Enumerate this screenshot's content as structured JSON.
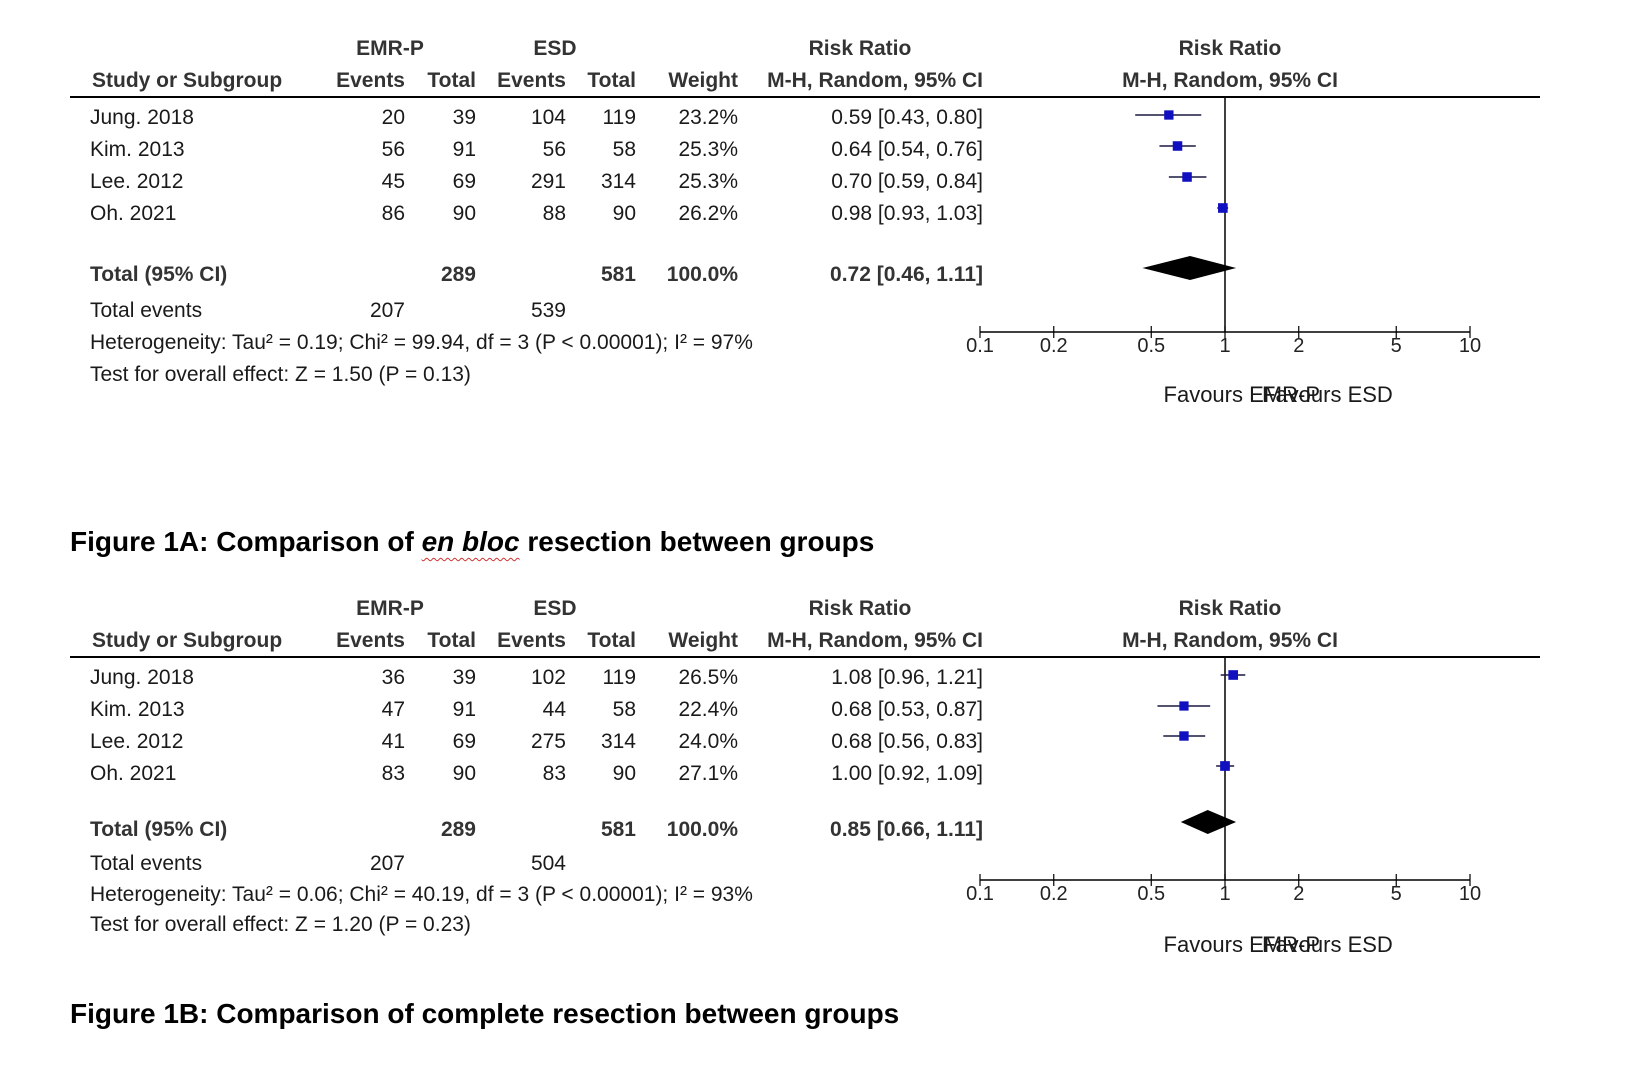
{
  "figures": [
    {
      "headers": {
        "study": "Study or Subgroup",
        "group1": "EMR-P",
        "group2": "ESD",
        "events": "Events",
        "total": "Total",
        "weight": "Weight",
        "rr": "Risk Ratio",
        "rr_method": "M-H, Random, 95% CI",
        "plot_title": "Risk Ratio",
        "plot_method": "M-H, Random, 95% CI"
      },
      "rows": [
        {
          "study": "Jung. 2018",
          "e1": "20",
          "t1": "39",
          "e2": "104",
          "t2": "119",
          "weight": "23.2%",
          "ci": "0.59 [0.43, 0.80]"
        },
        {
          "study": "Kim. 2013",
          "e1": "56",
          "t1": "91",
          "e2": "56",
          "t2": "58",
          "weight": "25.3%",
          "ci": "0.64 [0.54, 0.76]"
        },
        {
          "study": "Lee. 2012",
          "e1": "45",
          "t1": "69",
          "e2": "291",
          "t2": "314",
          "weight": "25.3%",
          "ci": "0.70 [0.59, 0.84]"
        },
        {
          "study": "Oh. 2021",
          "e1": "86",
          "t1": "90",
          "e2": "88",
          "t2": "90",
          "weight": "26.2%",
          "ci": "0.98 [0.93, 1.03]"
        }
      ],
      "total": {
        "label": "Total (95% CI)",
        "t1": "289",
        "t2": "581",
        "weight": "100.0%",
        "ci": "0.72 [0.46, 1.11]"
      },
      "total_events": {
        "label": "Total events",
        "e1": "207",
        "e2": "539"
      },
      "heterogeneity": "Heterogeneity: Tau² = 0.19; Chi² = 99.94, df = 3 (P < 0.00001); I² = 97%",
      "overall_effect": "Test for overall effect: Z = 1.50 (P = 0.13)",
      "favours_left": "Favours EMR-P",
      "favours_right": "Favours ESD",
      "caption_pre": "Figure 1A: Comparison of ",
      "caption_em": "en bloc",
      "caption_post": " resection between groups"
    },
    {
      "headers": {
        "study": "Study or Subgroup",
        "group1": "EMR-P",
        "group2": "ESD",
        "events": "Events",
        "total": "Total",
        "weight": "Weight",
        "rr": "Risk Ratio",
        "rr_method": "M-H, Random, 95% CI",
        "plot_title": "Risk Ratio",
        "plot_method": "M-H, Random, 95% CI"
      },
      "rows": [
        {
          "study": "Jung. 2018",
          "e1": "36",
          "t1": "39",
          "e2": "102",
          "t2": "119",
          "weight": "26.5%",
          "ci": "1.08 [0.96, 1.21]"
        },
        {
          "study": "Kim. 2013",
          "e1": "47",
          "t1": "91",
          "e2": "44",
          "t2": "58",
          "weight": "22.4%",
          "ci": "0.68 [0.53, 0.87]"
        },
        {
          "study": "Lee. 2012",
          "e1": "41",
          "t1": "69",
          "e2": "275",
          "t2": "314",
          "weight": "24.0%",
          "ci": "0.68 [0.56, 0.83]"
        },
        {
          "study": "Oh. 2021",
          "e1": "83",
          "t1": "90",
          "e2": "83",
          "t2": "90",
          "weight": "27.1%",
          "ci": "1.00 [0.92, 1.09]"
        }
      ],
      "total": {
        "label": "Total (95% CI)",
        "t1": "289",
        "t2": "581",
        "weight": "100.0%",
        "ci": "0.85 [0.66, 1.11]"
      },
      "total_events": {
        "label": "Total events",
        "e1": "207",
        "e2": "504"
      },
      "heterogeneity": "Heterogeneity: Tau² = 0.06; Chi² = 40.19, df = 3 (P < 0.00001); I² = 93%",
      "overall_effect": "Test for overall effect: Z = 1.20 (P = 0.23)",
      "favours_left": "Favours EMR-P",
      "favours_right": "Favours ESD",
      "caption_pre": "Figure 1B: Comparison of complete resection between groups",
      "caption_em": "",
      "caption_post": ""
    }
  ],
  "chart_data": [
    {
      "type": "forest",
      "scale": "log",
      "xlim": [
        0.1,
        10
      ],
      "xticks": [
        0.1,
        0.2,
        0.5,
        1,
        2,
        5,
        10
      ],
      "xtick_labels": [
        "0.1",
        "0.2",
        "0.5",
        "1",
        "2",
        "5",
        "10"
      ],
      "studies": [
        {
          "name": "Jung. 2018",
          "rr": 0.59,
          "lo": 0.43,
          "hi": 0.8,
          "weight": 23.2
        },
        {
          "name": "Kim. 2013",
          "rr": 0.64,
          "lo": 0.54,
          "hi": 0.76,
          "weight": 25.3
        },
        {
          "name": "Lee. 2012",
          "rr": 0.7,
          "lo": 0.59,
          "hi": 0.84,
          "weight": 25.3
        },
        {
          "name": "Oh. 2021",
          "rr": 0.98,
          "lo": 0.93,
          "hi": 1.03,
          "weight": 26.2
        }
      ],
      "pooled": {
        "rr": 0.72,
        "lo": 0.46,
        "hi": 1.11
      },
      "marker_color": "#1010c0",
      "diamond_color": "#000000"
    },
    {
      "type": "forest",
      "scale": "log",
      "xlim": [
        0.1,
        10
      ],
      "xticks": [
        0.1,
        0.2,
        0.5,
        1,
        2,
        5,
        10
      ],
      "xtick_labels": [
        "0.1",
        "0.2",
        "0.5",
        "1",
        "2",
        "5",
        "10"
      ],
      "studies": [
        {
          "name": "Jung. 2018",
          "rr": 1.08,
          "lo": 0.96,
          "hi": 1.21,
          "weight": 26.5
        },
        {
          "name": "Kim. 2013",
          "rr": 0.68,
          "lo": 0.53,
          "hi": 0.87,
          "weight": 22.4
        },
        {
          "name": "Lee. 2012",
          "rr": 0.68,
          "lo": 0.56,
          "hi": 0.83,
          "weight": 24.0
        },
        {
          "name": "Oh. 2021",
          "rr": 1.0,
          "lo": 0.92,
          "hi": 1.09,
          "weight": 27.1
        }
      ],
      "pooled": {
        "rr": 0.85,
        "lo": 0.66,
        "hi": 1.11
      },
      "marker_color": "#1010c0",
      "diamond_color": "#000000"
    }
  ]
}
